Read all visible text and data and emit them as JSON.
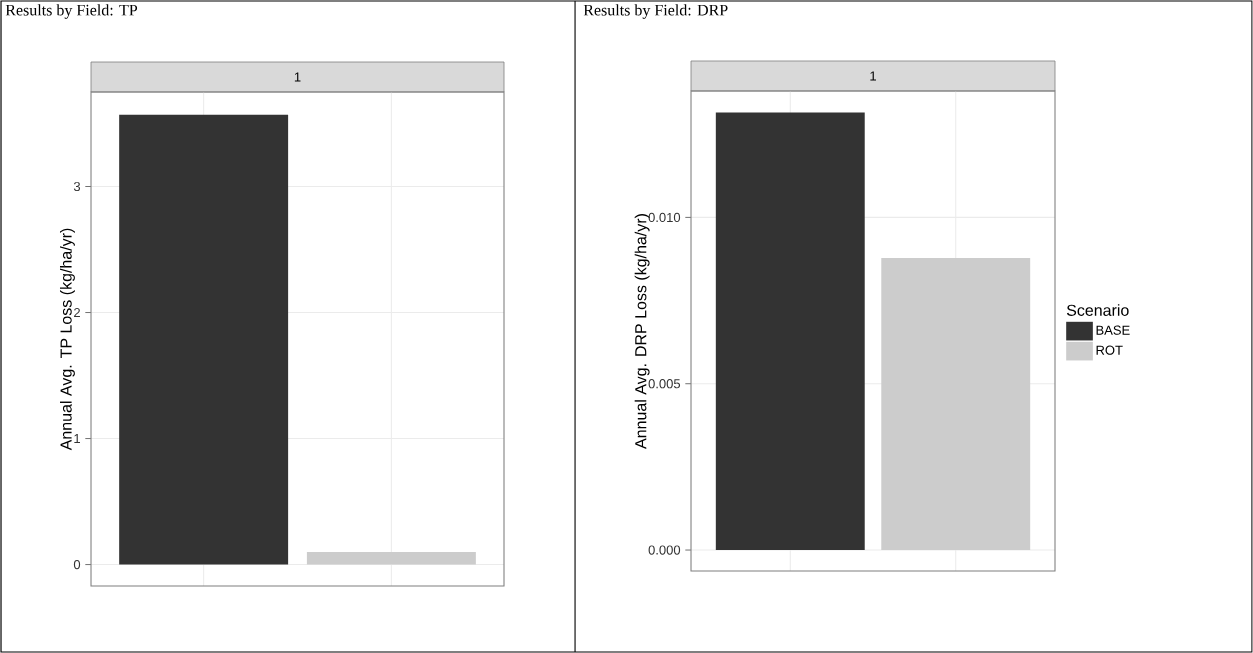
{
  "chart_data": [
    {
      "type": "bar",
      "title": "Results by Field: TP",
      "subtitle": "1",
      "ylabel": "Annual Avg. TP Loss (kg/ha/yr)",
      "categories": [
        null,
        null
      ],
      "series": [
        {
          "color": "#333333",
          "values": [
            3.57,
            null
          ]
        },
        {
          "color": "#cccccc",
          "values": [
            null,
            0.1
          ]
        }
      ],
      "ylim": [
        -0.17,
        3.75
      ],
      "yticks": [
        0,
        1,
        2,
        3
      ],
      "grid": true,
      "legend": false,
      "tick_labels": "y"
    },
    {
      "type": "bar",
      "title": "Results by Field: DRP",
      "subtitle": "1",
      "ylabel": "Annual Avg. DRP Loss (kg/ha/yr)",
      "legend_title": "Scenario",
      "categories": [
        null,
        null
      ],
      "series": [
        {
          "name": "BASE",
          "color": "#333333",
          "values": [
            0.01315,
            null
          ]
        },
        {
          "name": "ROT",
          "color": "#cccccc",
          "values": [
            null,
            0.00878
          ]
        }
      ],
      "ylim": [
        -0.00063,
        0.0138
      ],
      "yticks": [
        {
          "value": 0,
          "label": "0.000"
        },
        {
          "value": 0.005,
          "label": "0.005"
        },
        {
          "value": 0.01,
          "label": "0.010"
        }
      ],
      "grid": true,
      "legend": "right",
      "tick_labels": "y"
    }
  ]
}
